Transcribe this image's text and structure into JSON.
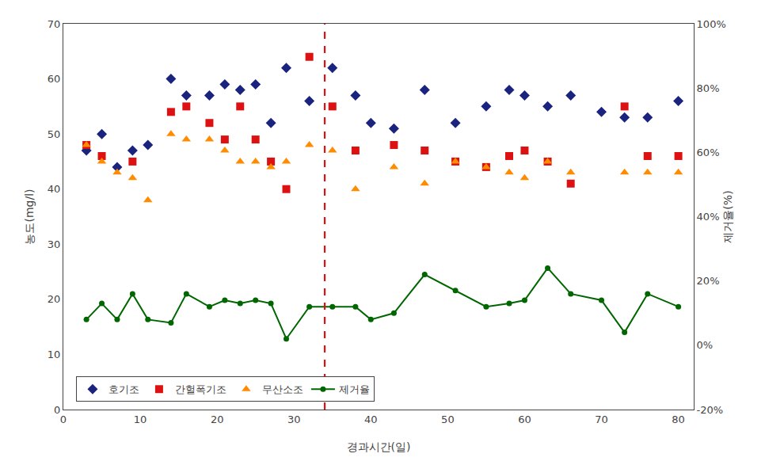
{
  "chart_data": {
    "type": "scatter",
    "x_label": "경과시간(일)",
    "y_label": "농도(mg/l)",
    "y2_label": "제거율(%)",
    "series": [
      {
        "name": "호기조",
        "type": "scatter",
        "marker": "diamond",
        "color": "#1a237e",
        "x": [
          3,
          5,
          7,
          9,
          11,
          14,
          16,
          19,
          21,
          23,
          25,
          27,
          29,
          32,
          35,
          38,
          40,
          43,
          47,
          51,
          55,
          58,
          60,
          63,
          66,
          70,
          73,
          76,
          80
        ],
        "values": [
          47,
          50,
          44,
          47,
          48,
          60,
          57,
          57,
          59,
          58,
          59,
          52,
          62,
          56,
          62,
          57,
          52,
          51,
          58,
          52,
          55,
          58,
          57,
          55,
          57,
          54,
          53,
          53,
          56
        ]
      },
      {
        "name": "간헐폭기조",
        "type": "scatter",
        "marker": "square",
        "color": "#dd1111",
        "x": [
          3,
          5,
          9,
          14,
          16,
          19,
          21,
          23,
          25,
          27,
          29,
          32,
          35,
          38,
          43,
          47,
          51,
          55,
          58,
          60,
          63,
          66,
          73,
          76,
          80
        ],
        "values": [
          48,
          46,
          45,
          54,
          55,
          52,
          49,
          55,
          49,
          45,
          40,
          64,
          55,
          47,
          48,
          47,
          45,
          44,
          46,
          47,
          45,
          41,
          55,
          46,
          46
        ]
      },
      {
        "name": "무산소조",
        "type": "scatter",
        "marker": "triangle-up",
        "color": "#ff8c00",
        "x": [
          3,
          5,
          7,
          9,
          11,
          14,
          16,
          19,
          21,
          23,
          25,
          27,
          29,
          32,
          35,
          38,
          43,
          47,
          51,
          55,
          58,
          60,
          63,
          66,
          73,
          76,
          80
        ],
        "values": [
          48,
          45,
          43,
          42,
          38,
          50,
          49,
          49,
          47,
          45,
          45,
          44,
          45,
          48,
          47,
          40,
          44,
          41,
          45,
          44,
          43,
          42,
          45,
          43,
          43,
          43,
          43
        ]
      },
      {
        "name": "제거율",
        "type": "line",
        "marker": "circle",
        "color": "#006600",
        "axis": "y2",
        "x": [
          3,
          5,
          7,
          9,
          11,
          14,
          16,
          19,
          21,
          23,
          25,
          27,
          29,
          32,
          35,
          38,
          40,
          43,
          47,
          51,
          55,
          58,
          60,
          63,
          66,
          70,
          73,
          76,
          80
        ],
        "values": [
          8,
          13,
          8,
          16,
          8,
          7,
          16,
          12,
          14,
          13,
          14,
          13,
          2,
          12,
          12,
          12,
          8,
          10,
          22,
          17,
          12,
          13,
          14,
          24,
          16,
          14,
          4,
          16,
          12
        ]
      }
    ],
    "vline": {
      "x": 34,
      "color": "#dd1111",
      "line_style": "dashed"
    },
    "xlim": [
      0,
      82
    ],
    "xticks": [
      0,
      10,
      20,
      30,
      40,
      50,
      60,
      70,
      80
    ],
    "ylim": [
      0,
      70
    ],
    "yticks": [
      0,
      10,
      20,
      30,
      40,
      50,
      60,
      70
    ],
    "y2lim": [
      -20,
      100
    ],
    "y2ticks": [
      {
        "value": -20,
        "label": "-20%"
      },
      {
        "value": 0,
        "label": "0%"
      },
      {
        "value": 20,
        "label": "20%"
      },
      {
        "value": 40,
        "label": "40%"
      },
      {
        "value": 60,
        "label": "60%"
      },
      {
        "value": 80,
        "label": "80%"
      },
      {
        "value": 100,
        "label": "100%"
      }
    ],
    "grid": false,
    "legend": "lower left"
  }
}
